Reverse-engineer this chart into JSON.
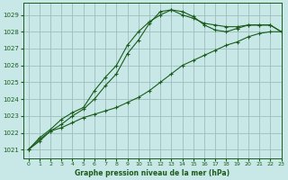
{
  "title": "Graphe pression niveau de la mer (hPa)",
  "bg_color": "#c8e8e8",
  "grid_color": "#9ebebe",
  "line_color": "#1a5c1a",
  "xlim": [
    -0.5,
    23
  ],
  "ylim": [
    1020.5,
    1029.7
  ],
  "yticks": [
    1021,
    1022,
    1023,
    1024,
    1025,
    1026,
    1027,
    1028,
    1029
  ],
  "xticks": [
    0,
    1,
    2,
    3,
    4,
    5,
    6,
    7,
    8,
    9,
    10,
    11,
    12,
    13,
    14,
    15,
    16,
    17,
    18,
    19,
    20,
    21,
    22,
    23
  ],
  "line1_x": [
    0,
    1,
    2,
    3,
    4,
    5,
    6,
    7,
    8,
    9,
    10,
    11,
    12,
    13,
    14,
    15,
    16,
    17,
    18,
    19,
    20,
    21,
    22,
    23
  ],
  "line1_y": [
    1021.0,
    1021.5,
    1022.1,
    1022.3,
    1022.6,
    1022.9,
    1023.1,
    1023.3,
    1023.5,
    1023.8,
    1024.1,
    1024.5,
    1025.0,
    1025.5,
    1026.0,
    1026.3,
    1026.6,
    1026.9,
    1027.2,
    1027.4,
    1027.7,
    1027.9,
    1028.0,
    1028.0
  ],
  "line2_x": [
    0,
    1,
    2,
    3,
    4,
    5,
    6,
    7,
    8,
    9,
    10,
    11,
    12,
    13,
    14,
    15,
    16,
    17,
    18,
    19,
    20,
    21,
    22,
    23
  ],
  "line2_y": [
    1021.0,
    1021.7,
    1022.2,
    1022.8,
    1023.2,
    1023.5,
    1024.5,
    1025.3,
    1026.0,
    1027.2,
    1028.0,
    1028.6,
    1029.0,
    1029.3,
    1029.0,
    1028.8,
    1028.5,
    1028.4,
    1028.3,
    1028.3,
    1028.4,
    1028.4,
    1028.4,
    1028.0
  ],
  "line3_x": [
    0,
    1,
    2,
    3,
    4,
    5,
    6,
    7,
    8,
    9,
    10,
    11,
    12,
    13,
    14,
    15,
    16,
    17,
    18,
    19,
    20,
    21,
    22,
    23
  ],
  "line3_y": [
    1021.0,
    1021.6,
    1022.1,
    1022.5,
    1023.0,
    1023.4,
    1024.0,
    1024.8,
    1025.5,
    1026.7,
    1027.5,
    1028.5,
    1029.2,
    1029.3,
    1029.2,
    1028.9,
    1028.4,
    1028.1,
    1028.0,
    1028.2,
    1028.4,
    1028.4,
    1028.4,
    1028.0
  ]
}
